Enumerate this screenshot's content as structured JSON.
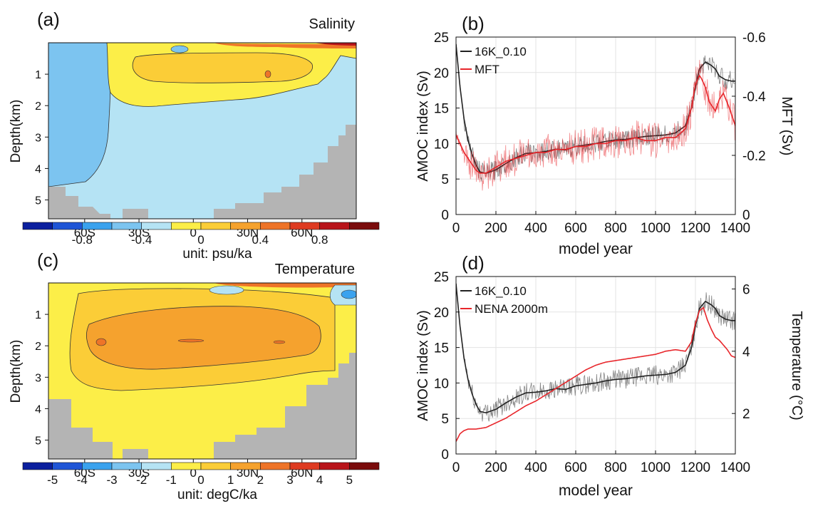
{
  "panels": {
    "a": {
      "letter": "(a)",
      "title": "Salinity",
      "ylabel": "Depth(km)",
      "yticks": [
        "1",
        "2",
        "3",
        "4",
        "5"
      ],
      "xticks": [
        "60S",
        "30S",
        "0",
        "30N",
        "60N"
      ],
      "colorbar": {
        "ticks": [
          "-0.8",
          "-0.4",
          "0",
          "0.4",
          "0.8"
        ],
        "unit": "unit: psu/ka",
        "colors": [
          "#0b1f9e",
          "#1f55d6",
          "#3aa2ee",
          "#7cc4f0",
          "#b5e3f4",
          "#fcee48",
          "#fbcd37",
          "#f5a22e",
          "#ee7428",
          "#de3b21",
          "#b8141a",
          "#7a0b0b"
        ]
      }
    },
    "b": {
      "letter": "(b)",
      "ylabel_left": "AMOC index (Sv)",
      "ylabel_right": "MFT (Sv)",
      "xlabel": "model year",
      "xticks": [
        "0",
        "200",
        "400",
        "600",
        "800",
        "1000",
        "1200",
        "1400"
      ],
      "yticks_left": [
        "0",
        "5",
        "10",
        "15",
        "20",
        "25"
      ],
      "yticks_right": [
        "0",
        "-0.2",
        "-0.4",
        "-0.6"
      ],
      "legend": [
        "16K_0.10",
        "MFT"
      ]
    },
    "c": {
      "letter": "(c)",
      "title": "Temperature",
      "ylabel": "Depth(km)",
      "yticks": [
        "1",
        "2",
        "3",
        "4",
        "5"
      ],
      "xticks": [
        "60S",
        "30S",
        "0",
        "30N",
        "60N"
      ],
      "colorbar": {
        "ticks": [
          "-5",
          "-4",
          "-3",
          "-2",
          "-1",
          "0",
          "1",
          "2",
          "3",
          "4",
          "5"
        ],
        "unit": "unit: degC/ka",
        "colors": [
          "#0b1f9e",
          "#1f55d6",
          "#3aa2ee",
          "#7cc4f0",
          "#b5e3f4",
          "#fcee48",
          "#fbcd37",
          "#f5a22e",
          "#ee7428",
          "#de3b21",
          "#b8141a",
          "#7a0b0b"
        ]
      }
    },
    "d": {
      "letter": "(d)",
      "ylabel_left": "AMOC index (Sv)",
      "ylabel_right": "Temperature (°C)",
      "xlabel": "model year",
      "xticks": [
        "0",
        "200",
        "400",
        "600",
        "800",
        "1000",
        "1200",
        "1400"
      ],
      "yticks_left": [
        "0",
        "5",
        "10",
        "15",
        "20",
        "25"
      ],
      "yticks_right": [
        "2",
        "4",
        "6"
      ],
      "legend": [
        "16K_0.10",
        "NENA 2000m"
      ]
    }
  },
  "chart_data": [
    {
      "panel": "b",
      "type": "line",
      "xlabel": "model year",
      "ylabel": "AMOC index (Sv)",
      "ylabel_right": "MFT (Sv)",
      "xlim": [
        0,
        1400
      ],
      "ylim": [
        0,
        25
      ],
      "ylim_right": [
        0,
        -0.6
      ],
      "grid": true,
      "legend_position": "top-left",
      "series": [
        {
          "name": "16K_0.10",
          "color": "#222222",
          "axis": "left",
          "x": [
            0,
            20,
            40,
            60,
            80,
            100,
            120,
            150,
            200,
            250,
            300,
            350,
            400,
            450,
            500,
            550,
            600,
            650,
            700,
            750,
            800,
            850,
            900,
            950,
            1000,
            1050,
            1100,
            1150,
            1180,
            1200,
            1220,
            1250,
            1280,
            1300,
            1320,
            1350,
            1380,
            1400
          ],
          "y": [
            24,
            18,
            13.5,
            10.5,
            8.5,
            7,
            6,
            5.8,
            6.3,
            7.2,
            8,
            8.6,
            8.7,
            8.9,
            9.2,
            9.1,
            9.6,
            9.8,
            10,
            10.3,
            10.5,
            10.6,
            10.8,
            11,
            11.1,
            11.2,
            11.5,
            12.5,
            15,
            18,
            20.5,
            21.5,
            21,
            20.5,
            19.5,
            19,
            18.8,
            18.8
          ]
        },
        {
          "name": "MFT",
          "color": "#e8262b",
          "axis": "right",
          "x": [
            0,
            20,
            40,
            60,
            80,
            100,
            120,
            150,
            200,
            250,
            300,
            350,
            400,
            450,
            500,
            550,
            600,
            650,
            700,
            750,
            800,
            850,
            900,
            950,
            1000,
            1050,
            1100,
            1150,
            1180,
            1200,
            1220,
            1230,
            1250,
            1270,
            1300,
            1320,
            1340,
            1370,
            1400
          ],
          "y": [
            -0.27,
            -0.24,
            -0.21,
            -0.19,
            -0.17,
            -0.15,
            -0.14,
            -0.14,
            -0.16,
            -0.18,
            -0.19,
            -0.2,
            -0.21,
            -0.21,
            -0.22,
            -0.22,
            -0.23,
            -0.23,
            -0.24,
            -0.24,
            -0.25,
            -0.25,
            -0.26,
            -0.25,
            -0.25,
            -0.26,
            -0.26,
            -0.29,
            -0.36,
            -0.44,
            -0.47,
            -0.46,
            -0.43,
            -0.38,
            -0.35,
            -0.39,
            -0.41,
            -0.36,
            -0.3
          ]
        }
      ]
    },
    {
      "panel": "d",
      "type": "line",
      "xlabel": "model year",
      "ylabel": "AMOC index (Sv)",
      "ylabel_right": "Temperature (°C)",
      "xlim": [
        0,
        1400
      ],
      "ylim": [
        0,
        25
      ],
      "ylim_right": [
        0.7,
        6.4
      ],
      "grid": true,
      "legend_position": "top-left",
      "series": [
        {
          "name": "16K_0.10",
          "color": "#222222",
          "axis": "left",
          "x": [
            0,
            20,
            40,
            60,
            80,
            100,
            120,
            150,
            200,
            250,
            300,
            350,
            400,
            450,
            500,
            550,
            600,
            650,
            700,
            750,
            800,
            850,
            900,
            950,
            1000,
            1050,
            1100,
            1150,
            1180,
            1200,
            1220,
            1250,
            1280,
            1300,
            1320,
            1350,
            1380,
            1400
          ],
          "y": [
            24,
            18,
            13.5,
            10.5,
            8.5,
            7,
            6,
            5.8,
            6.3,
            7.2,
            8,
            8.6,
            8.7,
            8.9,
            9.2,
            9.1,
            9.6,
            9.8,
            10,
            10.3,
            10.5,
            10.6,
            10.8,
            11,
            11.1,
            11.2,
            11.5,
            12.5,
            15,
            18,
            20.5,
            21.5,
            21,
            20.5,
            19.5,
            19,
            18.8,
            18.8
          ]
        },
        {
          "name": "NENA 2000m",
          "color": "#e8262b",
          "axis": "right",
          "x": [
            0,
            20,
            40,
            60,
            100,
            150,
            200,
            250,
            300,
            350,
            400,
            450,
            500,
            550,
            600,
            650,
            700,
            750,
            800,
            850,
            900,
            950,
            1000,
            1050,
            1100,
            1150,
            1180,
            1200,
            1220,
            1240,
            1260,
            1280,
            1300,
            1320,
            1340,
            1360,
            1380,
            1400
          ],
          "y": [
            1.1,
            1.35,
            1.45,
            1.5,
            1.5,
            1.55,
            1.7,
            1.85,
            2.05,
            2.25,
            2.4,
            2.6,
            2.8,
            3.0,
            3.2,
            3.4,
            3.55,
            3.65,
            3.7,
            3.75,
            3.8,
            3.85,
            3.9,
            4.0,
            4.05,
            4.0,
            4.3,
            4.9,
            5.3,
            5.4,
            5.0,
            4.7,
            4.45,
            4.35,
            4.2,
            4.05,
            3.85,
            3.8
          ]
        }
      ]
    }
  ]
}
